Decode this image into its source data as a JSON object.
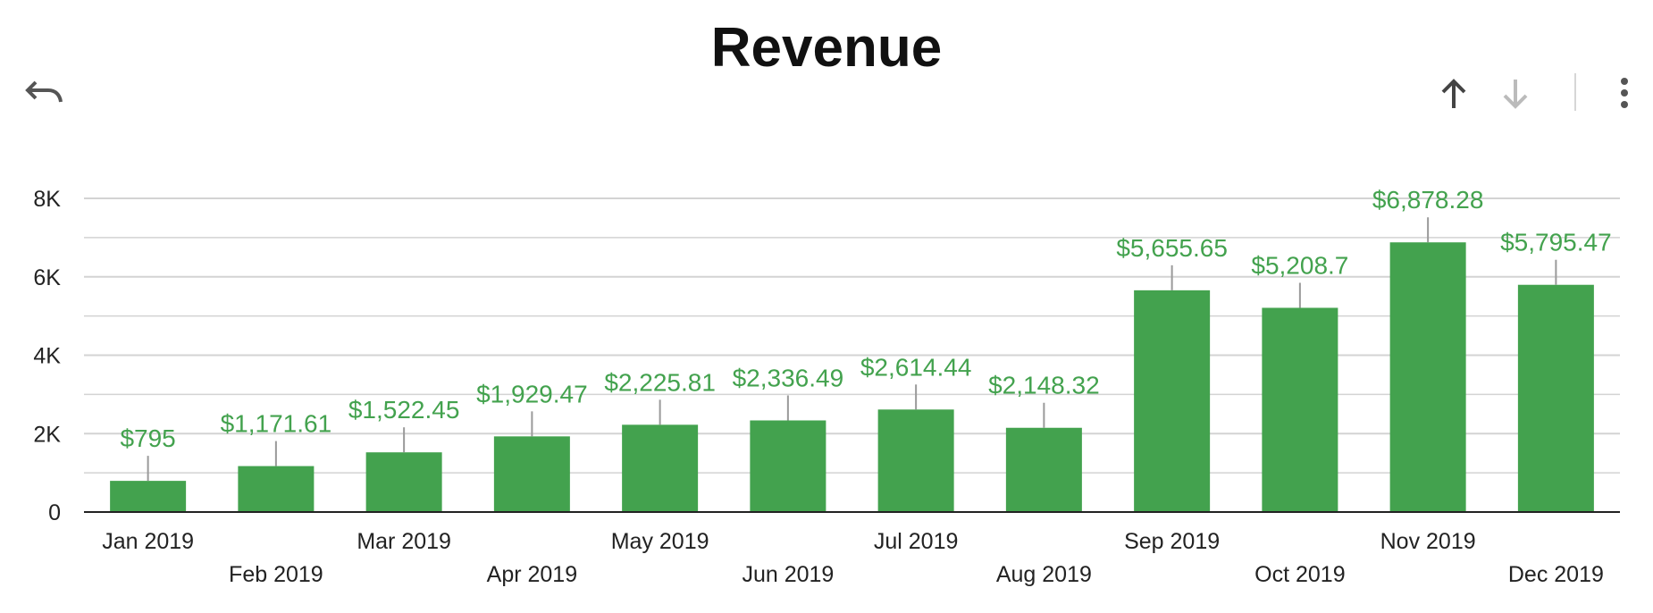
{
  "toolbar": {
    "undo_icon": "undo-icon",
    "sort_up_icon": "arrow-up-icon",
    "sort_down_icon": "arrow-down-icon",
    "more_icon": "more-vertical-icon"
  },
  "colors": {
    "bar": "#43a24e",
    "label": "#43a24e",
    "grid": "#d3d3d3",
    "axis": "#222222"
  },
  "chart_data": {
    "type": "bar",
    "title": "Revenue",
    "xlabel": "",
    "ylabel": "",
    "categories": [
      "Jan 2019",
      "Feb 2019",
      "Mar 2019",
      "Apr 2019",
      "May 2019",
      "Jun 2019",
      "Jul 2019",
      "Aug 2019",
      "Sep 2019",
      "Oct 2019",
      "Nov 2019",
      "Dec 2019"
    ],
    "values": [
      795,
      1171.61,
      1522.45,
      1929.47,
      2225.81,
      2336.49,
      2614.44,
      2148.32,
      5655.65,
      5208.7,
      6878.28,
      5795.47
    ],
    "data_labels": [
      "$795",
      "$1,171.61",
      "$1,522.45",
      "$1,929.47",
      "$2,225.81",
      "$2,336.49",
      "$2,614.44",
      "$2,148.32",
      "$5,655.65",
      "$5,208.7",
      "$6,878.28",
      "$5,795.47"
    ],
    "ylim": [
      0,
      8000
    ],
    "y_ticks": [
      {
        "value": 0,
        "label": "0"
      },
      {
        "value": 2000,
        "label": "2K"
      },
      {
        "value": 4000,
        "label": "4K"
      },
      {
        "value": 6000,
        "label": "6K"
      },
      {
        "value": 8000,
        "label": "8K"
      }
    ],
    "minor_gridlines": [
      1000,
      3000,
      5000,
      7000
    ],
    "grid": true,
    "legend": "none"
  }
}
